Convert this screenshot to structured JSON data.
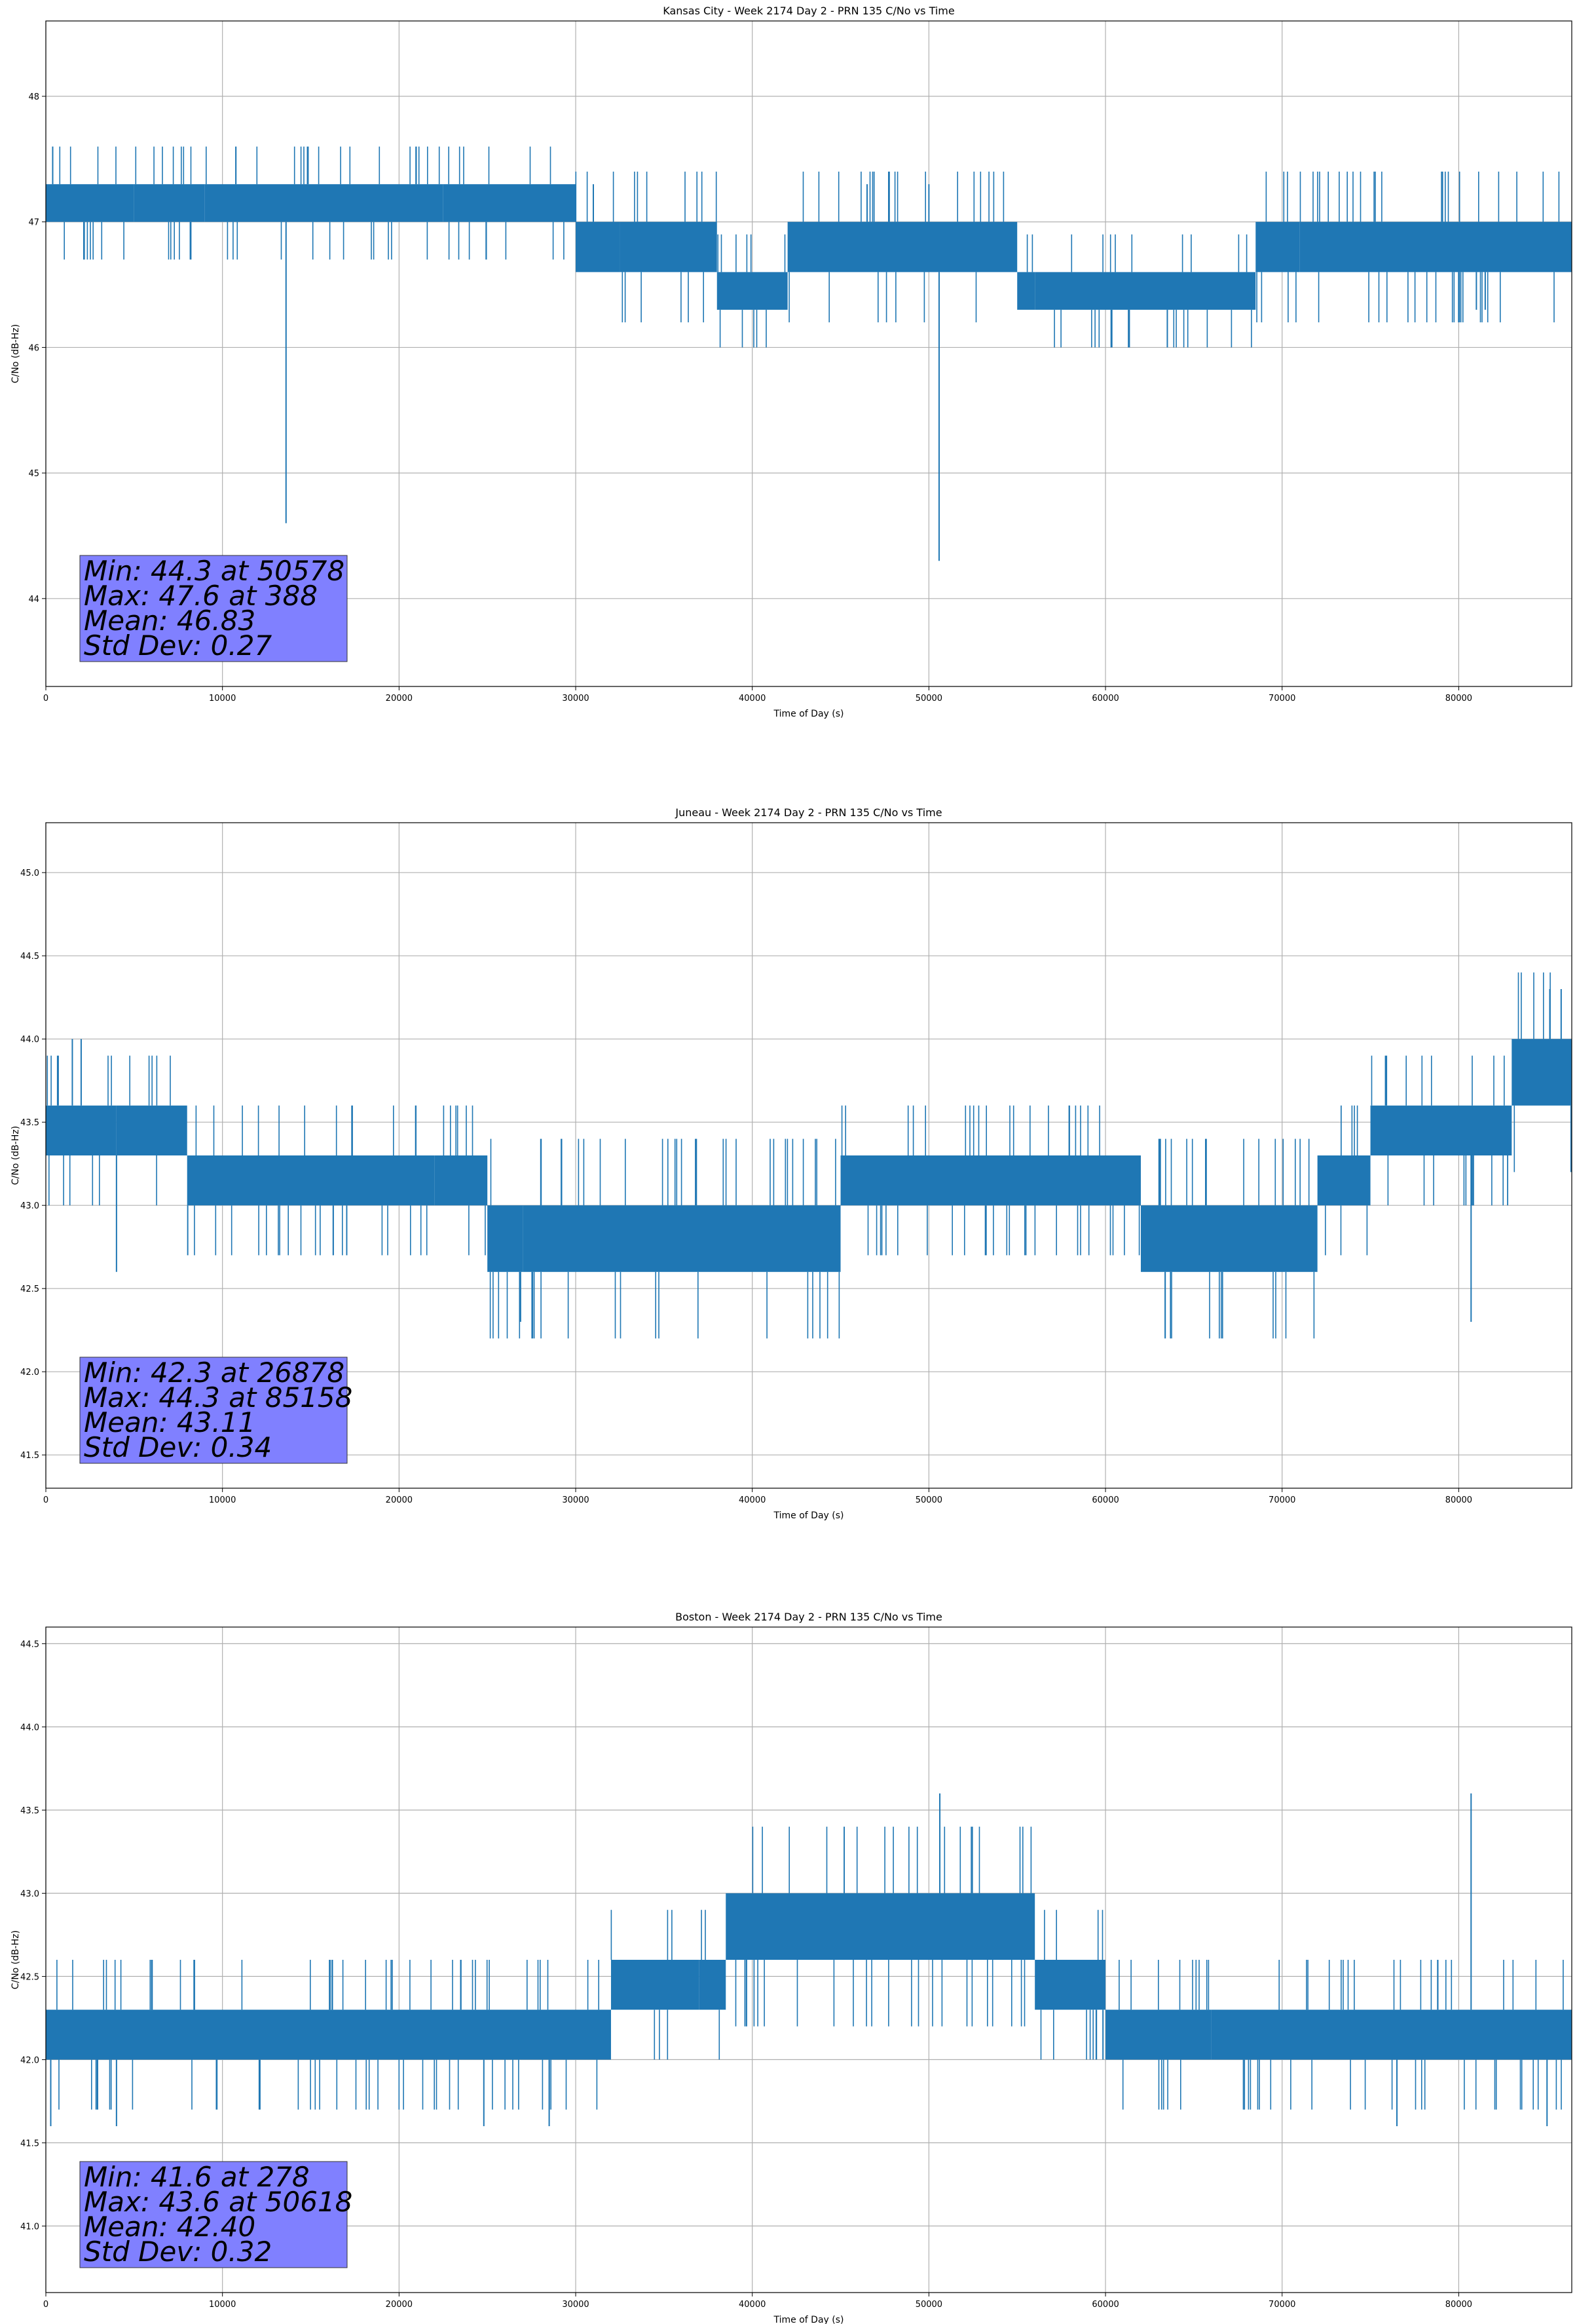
{
  "figure": {
    "grid": true,
    "line_color": "#1f77b4",
    "stats_box_color": "#8080ff"
  },
  "chart_data": [
    {
      "type": "line",
      "title": "Kansas City - Week 2174 Day 2 - PRN 135 C/No vs Time",
      "xlabel": "Time of Day (s)",
      "ylabel": "C/No (dB-Hz)",
      "xlim": [
        0,
        86400
      ],
      "ylim": [
        43.3,
        48.6
      ],
      "xticks": [
        "0",
        "10000",
        "20000",
        "30000",
        "40000",
        "50000",
        "60000",
        "70000",
        "80000"
      ],
      "yticks": [
        "44",
        "45",
        "46",
        "47",
        "48"
      ],
      "series": [
        {
          "bands": [
            {
              "x": [
                0,
                5000
              ],
              "lo": 47.0,
              "hi": 47.3
            },
            {
              "x": [
                5000,
                9000
              ],
              "lo": 47.0,
              "hi": 47.3
            },
            {
              "x": [
                9000,
                22500
              ],
              "lo": 47.0,
              "hi": 47.3
            },
            {
              "x": [
                22500,
                30000
              ],
              "lo": 47.0,
              "hi": 47.3
            },
            {
              "x": [
                30000,
                32500
              ],
              "lo": 46.6,
              "hi": 47.0
            },
            {
              "x": [
                32500,
                38000
              ],
              "lo": 46.6,
              "hi": 47.0
            },
            {
              "x": [
                38000,
                42000
              ],
              "lo": 46.3,
              "hi": 46.6
            },
            {
              "x": [
                42000,
                55000
              ],
              "lo": 46.6,
              "hi": 47.0
            },
            {
              "x": [
                55000,
                56000
              ],
              "lo": 46.3,
              "hi": 46.6
            },
            {
              "x": [
                56000,
                68500
              ],
              "lo": 46.3,
              "hi": 46.6
            },
            {
              "x": [
                68500,
                71000
              ],
              "lo": 46.6,
              "hi": 47.0
            },
            {
              "x": [
                71000,
                86400
              ],
              "lo": 46.6,
              "hi": 47.0
            }
          ],
          "spikes": [
            [
              388,
              47.6
            ],
            [
              13600,
              44.6
            ],
            [
              50578,
              44.3
            ],
            [
              63500,
              46.0
            ],
            [
              31000,
              47.3
            ],
            [
              46500,
              47.3
            ],
            [
              50000,
              47.3
            ],
            [
              81000,
              46.3
            ],
            [
              81500,
              46.3
            ]
          ]
        }
      ],
      "stats": [
        "Min: 44.3 at 50578",
        "Max: 47.6 at 388",
        "Mean: 46.83",
        "Std Dev: 0.27"
      ]
    },
    {
      "type": "line",
      "title": "Juneau - Week 2174 Day 2 - PRN 135 C/No vs Time",
      "xlabel": "Time of Day (s)",
      "ylabel": "C/No (dB-Hz)",
      "xlim": [
        0,
        86400
      ],
      "ylim": [
        41.3,
        45.3
      ],
      "xticks": [
        "0",
        "10000",
        "20000",
        "30000",
        "40000",
        "50000",
        "60000",
        "70000",
        "80000"
      ],
      "yticks": [
        "41.5",
        "42.0",
        "42.5",
        "43.0",
        "43.5",
        "44.0",
        "44.5",
        "45.0"
      ],
      "series": [
        {
          "bands": [
            {
              "x": [
                0,
                4000
              ],
              "lo": 43.3,
              "hi": 43.6
            },
            {
              "x": [
                4000,
                8000
              ],
              "lo": 43.3,
              "hi": 43.6
            },
            {
              "x": [
                8000,
                22000
              ],
              "lo": 43.0,
              "hi": 43.3
            },
            {
              "x": [
                22000,
                25000
              ],
              "lo": 43.0,
              "hi": 43.3
            },
            {
              "x": [
                25000,
                27000
              ],
              "lo": 42.6,
              "hi": 43.0
            },
            {
              "x": [
                27000,
                45000
              ],
              "lo": 42.6,
              "hi": 43.0
            },
            {
              "x": [
                45000,
                62000
              ],
              "lo": 43.0,
              "hi": 43.3
            },
            {
              "x": [
                62000,
                72000
              ],
              "lo": 42.6,
              "hi": 43.0
            },
            {
              "x": [
                72000,
                75000
              ],
              "lo": 43.0,
              "hi": 43.3
            },
            {
              "x": [
                75000,
                83000
              ],
              "lo": 43.3,
              "hi": 43.6
            },
            {
              "x": [
                83000,
                86400
              ],
              "lo": 43.6,
              "hi": 44.0
            }
          ],
          "spikes": [
            [
              1500,
              44.0
            ],
            [
              2000,
              44.0
            ],
            [
              4000,
              42.6
            ],
            [
              26878,
              42.3
            ],
            [
              80700,
              42.3
            ],
            [
              85158,
              44.3
            ],
            [
              85800,
              44.3
            ]
          ]
        }
      ],
      "stats": [
        "Min: 42.3 at 26878",
        "Max: 44.3 at 85158",
        "Mean: 43.11",
        "Std Dev: 0.34"
      ]
    },
    {
      "type": "line",
      "title": "Boston - Week 2174 Day 2 - PRN 135 C/No vs Time",
      "xlabel": "Time of Day (s)",
      "ylabel": "C/No (dB-Hz)",
      "xlim": [
        0,
        86400
      ],
      "ylim": [
        40.6,
        44.6
      ],
      "xticks": [
        "0",
        "10000",
        "20000",
        "30000",
        "40000",
        "50000",
        "60000",
        "70000",
        "80000"
      ],
      "yticks": [
        "41.0",
        "41.5",
        "42.0",
        "42.5",
        "43.0",
        "43.5",
        "44.0",
        "44.5"
      ],
      "series": [
        {
          "bands": [
            {
              "x": [
                0,
                32000
              ],
              "lo": 42.0,
              "hi": 42.3
            },
            {
              "x": [
                32000,
                37000
              ],
              "lo": 42.3,
              "hi": 42.6
            },
            {
              "x": [
                37000,
                38500
              ],
              "lo": 42.3,
              "hi": 42.6
            },
            {
              "x": [
                38500,
                56000
              ],
              "lo": 42.6,
              "hi": 43.0
            },
            {
              "x": [
                56000,
                60000
              ],
              "lo": 42.3,
              "hi": 42.6
            },
            {
              "x": [
                60000,
                66000
              ],
              "lo": 42.0,
              "hi": 42.3
            },
            {
              "x": [
                66000,
                86400
              ],
              "lo": 42.0,
              "hi": 42.3
            }
          ],
          "spikes": [
            [
              278,
              41.6
            ],
            [
              4000,
              41.6
            ],
            [
              24800,
              41.6
            ],
            [
              28500,
              41.6
            ],
            [
              50618,
              43.6
            ],
            [
              80700,
              43.6
            ],
            [
              76500,
              41.6
            ],
            [
              85000,
              41.6
            ]
          ]
        }
      ],
      "stats": [
        "Min: 41.6 at 278",
        "Max: 43.6 at 50618",
        "Mean: 42.40",
        "Std Dev: 0.32"
      ]
    }
  ]
}
